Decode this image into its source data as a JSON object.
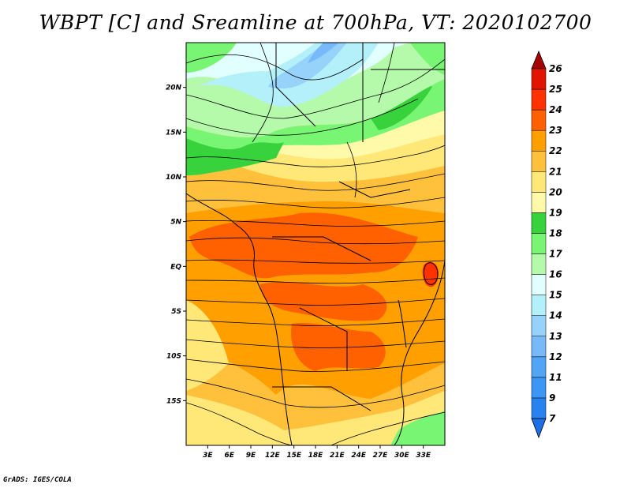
{
  "title": "WBPT [C] and Sreamline at 700hPa, VT: 2020102700",
  "credit": "GrADS: IGES/COLA",
  "map": {
    "lon_range": [
      0,
      36
    ],
    "lat_range": [
      -20,
      25
    ],
    "x_ticks": [
      {
        "value": 3,
        "label": "3E"
      },
      {
        "value": 6,
        "label": "6E"
      },
      {
        "value": 9,
        "label": "9E"
      },
      {
        "value": 12,
        "label": "12E"
      },
      {
        "value": 15,
        "label": "15E"
      },
      {
        "value": 18,
        "label": "18E"
      },
      {
        "value": 21,
        "label": "21E"
      },
      {
        "value": 24,
        "label": "24E"
      },
      {
        "value": 27,
        "label": "27E"
      },
      {
        "value": 30,
        "label": "30E"
      },
      {
        "value": 33,
        "label": "33E"
      }
    ],
    "y_ticks": [
      {
        "value": 20,
        "label": "20N"
      },
      {
        "value": 15,
        "label": "15N"
      },
      {
        "value": 10,
        "label": "10N"
      },
      {
        "value": 5,
        "label": "5N"
      },
      {
        "value": 0,
        "label": "EQ"
      },
      {
        "value": -5,
        "label": "5S"
      },
      {
        "value": -10,
        "label": "10S"
      },
      {
        "value": -15,
        "label": "15S"
      }
    ]
  },
  "colorbar": {
    "levels": [
      {
        "label": "7",
        "color": "#1e6ee6"
      },
      {
        "label": "9",
        "color": "#2882f0"
      },
      {
        "label": "11",
        "color": "#3c96f5"
      },
      {
        "label": "12",
        "color": "#50a5f5"
      },
      {
        "label": "13",
        "color": "#78b9fa"
      },
      {
        "label": "14",
        "color": "#96d2fa"
      },
      {
        "label": "15",
        "color": "#b4f0fa"
      },
      {
        "label": "16",
        "color": "#e1ffff"
      },
      {
        "label": "17",
        "color": "#b4faaa"
      },
      {
        "label": "18",
        "color": "#78f573"
      },
      {
        "label": "19",
        "color": "#37d23c"
      },
      {
        "label": "20",
        "color": "#fffaaa"
      },
      {
        "label": "21",
        "color": "#ffe878"
      },
      {
        "label": "22",
        "color": "#ffc03c"
      },
      {
        "label": "23",
        "color": "#ffa000"
      },
      {
        "label": "24",
        "color": "#ff6000"
      },
      {
        "label": "25",
        "color": "#ff3200"
      },
      {
        "label": "26",
        "color": "#e11400"
      }
    ],
    "under_color": "#1e6ee6",
    "over_color": "#a50000"
  }
}
